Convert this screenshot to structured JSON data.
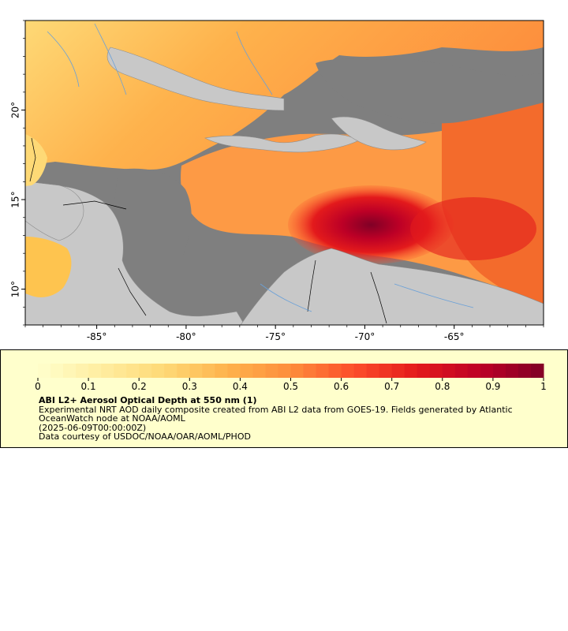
{
  "map": {
    "x_axis": {
      "ticks": [
        "-85°",
        "-80°",
        "-75°",
        "-70°",
        "-65°"
      ],
      "values": [
        -85,
        -80,
        -75,
        -70,
        -65
      ],
      "range": [
        -89,
        -60
      ]
    },
    "y_axis": {
      "ticks": [
        "10°",
        "15°",
        "20°"
      ],
      "values": [
        10,
        15,
        20
      ],
      "range": [
        8,
        25
      ]
    },
    "colors": {
      "land": "#c8c8c8",
      "no_data": "#7f7f7f",
      "border": "#000000",
      "rivers": "#6aa0d8",
      "admin_lines": "#8c8c8c"
    }
  },
  "colorbar": {
    "min": 0,
    "max": 1,
    "tick_labels": [
      "0",
      "0.1",
      "0.2",
      "0.3",
      "0.4",
      "0.5",
      "0.6",
      "0.7",
      "0.8",
      "0.9",
      "1"
    ],
    "colors": [
      "#ffffcc",
      "#ffeda0",
      "#fed976",
      "#feb24c",
      "#fd8d3c",
      "#fc4e2a",
      "#e31a1c",
      "#bd0026",
      "#800026"
    ]
  },
  "legend": {
    "title": "ABI L2+ Aerosol Optical Depth at 550 nm (1)",
    "line1": "Experimental NRT AOD daily composite created from ABI L2 data from GOES-19. Fields generated by Atlantic",
    "line2": "OceanWatch node at NOAA/AOML",
    "line3": "(2025-06-09T00:00:00Z)",
    "line4": "Data courtesy of USDOC/NOAA/OAR/AOML/PHOD"
  }
}
